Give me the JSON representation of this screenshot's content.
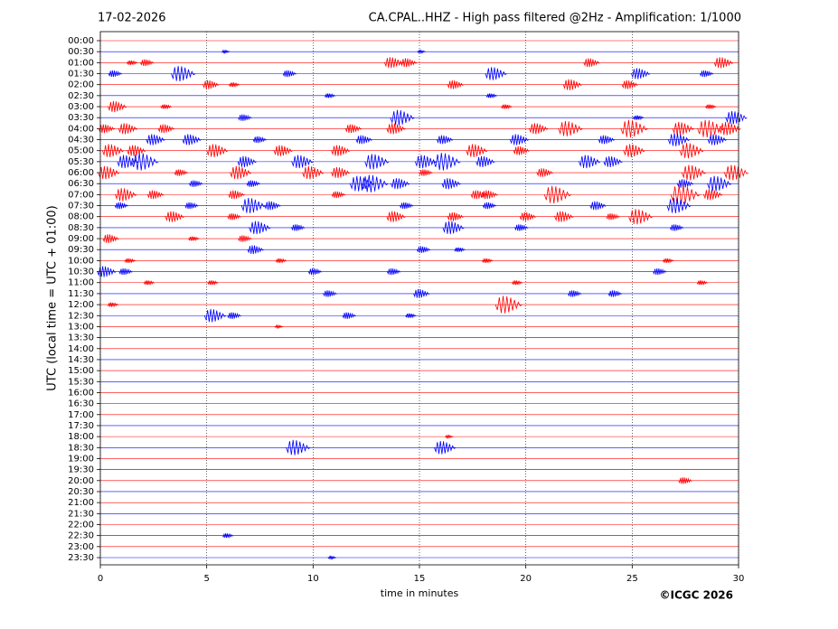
{
  "chart_data": {
    "type": "helicorder",
    "date": "17-02-2026",
    "title": "CA.CPAL..HHZ - High pass filtered @2Hz - Amplification: 1/1000",
    "xlabel": "time in minutes",
    "ylabel": "UTC (local time = UTC + 01:00)",
    "credit": "©ICGC 2026",
    "xlim": [
      0,
      30
    ],
    "xticks": [
      0,
      5,
      10,
      15,
      20,
      25,
      30
    ],
    "grid": true,
    "series": [
      {
        "name": "00:00",
        "color": "#ff0000",
        "x": [],
        "values": []
      },
      {
        "name": "00:30",
        "color": "#0000ff",
        "x": [
          5.9,
          15.1
        ],
        "values": [
          0.1,
          0.1
        ]
      },
      {
        "name": "01:00",
        "color": "#ff0000",
        "x": [
          1.5,
          2.2,
          13.8,
          14.5,
          23.1,
          29.3
        ],
        "values": [
          0.2,
          0.3,
          0.5,
          0.4,
          0.4,
          0.5
        ]
      },
      {
        "name": "01:30",
        "color": "#0000ff",
        "x": [
          0.7,
          3.9,
          8.9,
          18.6,
          25.4,
          28.5
        ],
        "values": [
          0.3,
          0.7,
          0.3,
          0.6,
          0.5,
          0.3
        ]
      },
      {
        "name": "02:00",
        "color": "#ff0000",
        "x": [
          5.2,
          6.3,
          16.7,
          22.2,
          24.9
        ],
        "values": [
          0.4,
          0.2,
          0.4,
          0.5,
          0.4
        ]
      },
      {
        "name": "02:30",
        "color": "#0000ff",
        "x": [
          10.8,
          18.4
        ],
        "values": [
          0.2,
          0.2
        ]
      },
      {
        "name": "03:00",
        "color": "#ff0000",
        "x": [
          0.8,
          3.1,
          19.1,
          28.7
        ],
        "values": [
          0.5,
          0.2,
          0.2,
          0.2
        ]
      },
      {
        "name": "03:30",
        "color": "#0000ff",
        "x": [
          6.8,
          14.2,
          25.3,
          29.9
        ],
        "values": [
          0.3,
          0.7,
          0.2,
          0.6
        ]
      },
      {
        "name": "04:00",
        "color": "#ff0000",
        "x": [
          0.3,
          1.3,
          3.1,
          11.9,
          13.9,
          20.6,
          22.1,
          25.1,
          27.4,
          28.7,
          29.6
        ],
        "values": [
          0.4,
          0.5,
          0.4,
          0.4,
          0.5,
          0.5,
          0.7,
          0.8,
          0.6,
          0.8,
          0.6
        ]
      },
      {
        "name": "04:30",
        "color": "#0000ff",
        "x": [
          2.6,
          4.3,
          7.5,
          12.4,
          16.2,
          19.7,
          23.8,
          27.2,
          29.0
        ],
        "values": [
          0.5,
          0.5,
          0.3,
          0.4,
          0.4,
          0.5,
          0.4,
          0.6,
          0.5
        ]
      },
      {
        "name": "05:00",
        "color": "#ff0000",
        "x": [
          0.6,
          1.7,
          5.5,
          8.6,
          11.3,
          17.7,
          19.8,
          25.1,
          27.8
        ],
        "values": [
          0.6,
          0.5,
          0.6,
          0.5,
          0.5,
          0.6,
          0.4,
          0.6,
          0.7
        ]
      },
      {
        "name": "05:30",
        "color": "#0000ff",
        "x": [
          1.3,
          2.1,
          6.9,
          9.5,
          13.0,
          15.3,
          16.3,
          18.1,
          23.0,
          24.1
        ],
        "values": [
          0.6,
          0.8,
          0.5,
          0.6,
          0.7,
          0.6,
          0.8,
          0.5,
          0.6,
          0.5
        ]
      },
      {
        "name": "06:00",
        "color": "#ff0000",
        "x": [
          0.4,
          3.8,
          6.6,
          10.0,
          11.3,
          15.3,
          20.9,
          27.9,
          29.9
        ],
        "values": [
          0.6,
          0.3,
          0.6,
          0.6,
          0.5,
          0.3,
          0.4,
          0.7,
          0.7
        ]
      },
      {
        "name": "06:30",
        "color": "#0000ff",
        "x": [
          4.5,
          7.2,
          12.3,
          12.9,
          14.1,
          16.5,
          27.5,
          29.1
        ],
        "values": [
          0.3,
          0.3,
          0.7,
          0.8,
          0.5,
          0.5,
          0.4,
          0.7
        ]
      },
      {
        "name": "07:00",
        "color": "#ff0000",
        "x": [
          1.2,
          2.6,
          6.4,
          11.2,
          17.8,
          18.3,
          21.5,
          27.5,
          28.8
        ],
        "values": [
          0.6,
          0.4,
          0.4,
          0.3,
          0.4,
          0.4,
          0.8,
          0.9,
          0.5
        ]
      },
      {
        "name": "07:30",
        "color": "#0000ff",
        "x": [
          1.0,
          4.3,
          7.2,
          8.1,
          14.4,
          18.3,
          23.4,
          27.2
        ],
        "values": [
          0.3,
          0.3,
          0.7,
          0.4,
          0.3,
          0.3,
          0.4,
          0.7
        ]
      },
      {
        "name": "08:00",
        "color": "#ff0000",
        "x": [
          3.5,
          6.3,
          13.9,
          16.7,
          20.1,
          21.8,
          24.1,
          25.4
        ],
        "values": [
          0.5,
          0.3,
          0.5,
          0.4,
          0.4,
          0.5,
          0.3,
          0.7
        ]
      },
      {
        "name": "08:30",
        "color": "#0000ff",
        "x": [
          7.5,
          9.3,
          16.6,
          19.8,
          27.1
        ],
        "values": [
          0.6,
          0.3,
          0.6,
          0.3,
          0.3
        ]
      },
      {
        "name": "09:00",
        "color": "#ff0000",
        "x": [
          0.5,
          4.4,
          6.8
        ],
        "values": [
          0.4,
          0.2,
          0.3
        ]
      },
      {
        "name": "09:30",
        "color": "#0000ff",
        "x": [
          7.3,
          15.2,
          16.9
        ],
        "values": [
          0.4,
          0.3,
          0.2
        ]
      },
      {
        "name": "10:00",
        "color": "#ff0000",
        "x": [
          1.4,
          8.5,
          18.2,
          26.7
        ],
        "values": [
          0.2,
          0.2,
          0.2,
          0.2
        ]
      },
      {
        "name": "10:30",
        "color": "#0000ff",
        "x": [
          0.3,
          1.2,
          10.1,
          13.8,
          26.3
        ],
        "values": [
          0.5,
          0.3,
          0.3,
          0.3,
          0.3
        ]
      },
      {
        "name": "11:00",
        "color": "#ff0000",
        "x": [
          2.3,
          5.3,
          19.6,
          28.3
        ],
        "values": [
          0.2,
          0.2,
          0.2,
          0.2
        ]
      },
      {
        "name": "11:30",
        "color": "#0000ff",
        "x": [
          10.8,
          15.1,
          22.3,
          24.2
        ],
        "values": [
          0.3,
          0.4,
          0.3,
          0.3
        ]
      },
      {
        "name": "12:00",
        "color": "#ff0000",
        "x": [
          0.6,
          19.2
        ],
        "values": [
          0.2,
          0.8
        ]
      },
      {
        "name": "12:30",
        "color": "#0000ff",
        "x": [
          5.4,
          6.3,
          11.7,
          14.6
        ],
        "values": [
          0.6,
          0.3,
          0.3,
          0.2
        ]
      },
      {
        "name": "13:00",
        "color": "#ff0000",
        "x": [
          8.4
        ],
        "values": [
          0.1
        ]
      },
      {
        "name": "13:30",
        "color": "#0000ff",
        "x": [],
        "values": []
      },
      {
        "name": "14:00",
        "color": "#ff0000",
        "x": [],
        "values": []
      },
      {
        "name": "14:30",
        "color": "#0000ff",
        "x": [],
        "values": []
      },
      {
        "name": "15:00",
        "color": "#ff0000",
        "x": [],
        "values": []
      },
      {
        "name": "15:30",
        "color": "#0000ff",
        "x": [],
        "values": []
      },
      {
        "name": "16:00",
        "color": "#ff0000",
        "x": [],
        "values": []
      },
      {
        "name": "16:30",
        "color": "#0000ff",
        "x": [],
        "values": []
      },
      {
        "name": "17:00",
        "color": "#ff0000",
        "x": [],
        "values": []
      },
      {
        "name": "17:30",
        "color": "#0000ff",
        "x": [],
        "values": []
      },
      {
        "name": "18:00",
        "color": "#ff0000",
        "x": [
          16.4
        ],
        "values": [
          0.1
        ]
      },
      {
        "name": "18:30",
        "color": "#0000ff",
        "x": [
          9.3,
          16.2
        ],
        "values": [
          0.7,
          0.6
        ]
      },
      {
        "name": "19:00",
        "color": "#ff0000",
        "x": [],
        "values": []
      },
      {
        "name": "19:30",
        "color": "#0000ff",
        "x": [],
        "values": []
      },
      {
        "name": "20:00",
        "color": "#ff0000",
        "x": [
          27.5
        ],
        "values": [
          0.3
        ]
      },
      {
        "name": "20:30",
        "color": "#0000ff",
        "x": [],
        "values": []
      },
      {
        "name": "21:00",
        "color": "#ff0000",
        "x": [],
        "values": []
      },
      {
        "name": "21:30",
        "color": "#0000ff",
        "x": [],
        "values": []
      },
      {
        "name": "22:00",
        "color": "#ff0000",
        "x": [],
        "values": []
      },
      {
        "name": "22:30",
        "color": "#0000ff",
        "x": [
          6.0
        ],
        "values": [
          0.2
        ]
      },
      {
        "name": "23:00",
        "color": "#ff0000",
        "x": [],
        "values": []
      },
      {
        "name": "23:30",
        "color": "#0000ff",
        "x": [
          10.9
        ],
        "values": [
          0.1
        ]
      }
    ]
  }
}
